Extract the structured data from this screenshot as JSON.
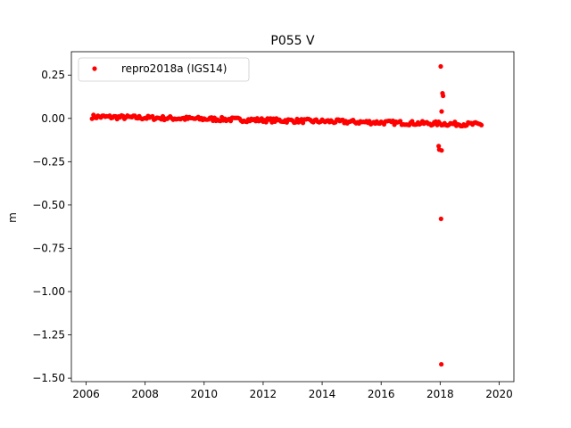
{
  "chart_data": {
    "type": "scatter",
    "title": "P055 V",
    "xlabel": "",
    "ylabel": "m",
    "xlim": [
      2005.5,
      2020.5
    ],
    "ylim": [
      -1.52,
      0.385
    ],
    "xticks": [
      2006,
      2008,
      2010,
      2012,
      2014,
      2016,
      2018,
      2020
    ],
    "xtick_labels": [
      "2006",
      "2008",
      "2010",
      "2012",
      "2014",
      "2016",
      "2018",
      "2020"
    ],
    "yticks": [
      0.25,
      0.0,
      -0.25,
      -0.5,
      -0.75,
      -1.0,
      -1.25,
      -1.5
    ],
    "ytick_labels": [
      "0.25",
      "0.00",
      "−0.25",
      "−0.50",
      "−0.75",
      "−1.00",
      "−1.25",
      "−1.50"
    ],
    "grid": false,
    "legend": {
      "position": "top-left",
      "entries": [
        "repro2018a (IGS14)"
      ]
    },
    "series": [
      {
        "name": "repro2018a (IGS14)",
        "color": "#ff0000",
        "marker": "circle",
        "trend": {
          "x_start": 2006.2,
          "x_end": 2019.4,
          "y_start": 0.01,
          "y_end": -0.035,
          "band": 0.012,
          "step": 0.05
        },
        "outliers": [
          {
            "x": 2017.95,
            "y": -0.16
          },
          {
            "x": 2017.97,
            "y": -0.18
          },
          {
            "x": 2018.05,
            "y": -0.185
          },
          {
            "x": 2018.02,
            "y": 0.3
          },
          {
            "x": 2018.05,
            "y": 0.04
          },
          {
            "x": 2018.08,
            "y": 0.145
          },
          {
            "x": 2018.1,
            "y": 0.13
          },
          {
            "x": 2018.03,
            "y": -0.58
          },
          {
            "x": 2018.04,
            "y": -1.42
          }
        ]
      }
    ]
  }
}
